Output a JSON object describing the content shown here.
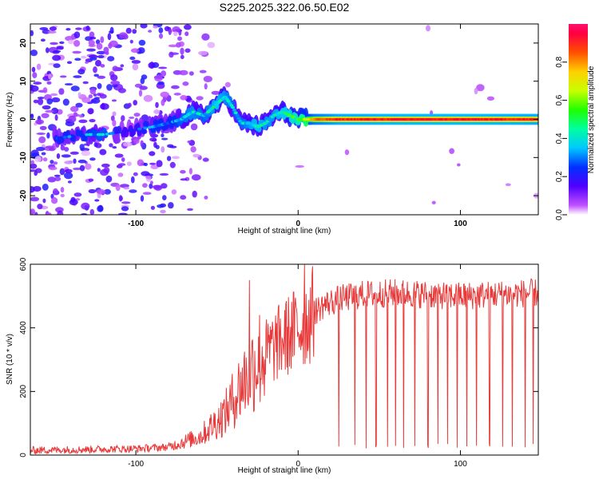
{
  "title": "S225.2025.322.06.50.E02",
  "chart_data": [
    {
      "type": "heatmap",
      "xlabel": "Height of straight line (km)",
      "ylabel": "Frequency (Hz)",
      "xlim": [
        -165,
        148
      ],
      "ylim": [
        -25,
        25
      ],
      "x_ticks": [
        -100,
        0,
        100
      ],
      "y_ticks": [
        -20,
        -10,
        0,
        10,
        20
      ],
      "colorbar": {
        "label": "Normalized spectral amplitude",
        "range": [
          0,
          1
        ],
        "ticks": [
          0.0,
          0.2,
          0.4,
          0.6,
          0.8
        ]
      },
      "ridge": [
        {
          "x": -150,
          "y": -5,
          "a": 0.3
        },
        {
          "x": -130,
          "y": -4,
          "a": 0.35
        },
        {
          "x": -120,
          "y": -4,
          "a": 0.4
        },
        {
          "x": -105,
          "y": -3,
          "a": 0.2
        },
        {
          "x": -90,
          "y": -2,
          "a": 0.35
        },
        {
          "x": -80,
          "y": -1,
          "a": 0.3
        },
        {
          "x": -72,
          "y": 0,
          "a": 0.4
        },
        {
          "x": -65,
          "y": 2,
          "a": 0.45
        },
        {
          "x": -58,
          "y": 1,
          "a": 0.4
        },
        {
          "x": -50,
          "y": 4,
          "a": 0.5
        },
        {
          "x": -45,
          "y": 6,
          "a": 0.45
        },
        {
          "x": -40,
          "y": 3,
          "a": 0.4
        },
        {
          "x": -35,
          "y": -1,
          "a": 0.4
        },
        {
          "x": -30,
          "y": -1,
          "a": 0.45
        },
        {
          "x": -25,
          "y": -2,
          "a": 0.5
        },
        {
          "x": -20,
          "y": -1,
          "a": 0.45
        },
        {
          "x": -15,
          "y": 1,
          "a": 0.45
        },
        {
          "x": -10,
          "y": 2,
          "a": 0.5
        },
        {
          "x": -5,
          "y": 1,
          "a": 0.55
        },
        {
          "x": 0,
          "y": 0,
          "a": 0.6
        },
        {
          "x": 5,
          "y": 0,
          "a": 0.7
        },
        {
          "x": 10,
          "y": 0,
          "a": 0.85
        },
        {
          "x": 25,
          "y": 0,
          "a": 0.95
        },
        {
          "x": 50,
          "y": 0,
          "a": 0.97
        },
        {
          "x": 75,
          "y": 0,
          "a": 0.98
        },
        {
          "x": 100,
          "y": 0,
          "a": 0.98
        },
        {
          "x": 125,
          "y": 0,
          "a": 0.97
        },
        {
          "x": 148,
          "y": 0,
          "a": 0.95
        }
      ]
    },
    {
      "type": "line",
      "xlabel": "Height of straight line (km)",
      "ylabel": "SNR (10 * v/v)",
      "xlim": [
        -165,
        148
      ],
      "ylim": [
        0,
        600
      ],
      "x_ticks": [
        -100,
        0,
        100
      ],
      "y_ticks": [
        0,
        200,
        400,
        600
      ],
      "color": "#e83a3a",
      "envelope": {
        "x": [
          -165,
          -100,
          -80,
          -60,
          -45,
          -35,
          -25,
          -15,
          -5,
          5,
          10,
          15,
          25,
          40,
          60,
          80,
          100,
          120,
          148
        ],
        "y": [
          15,
          20,
          25,
          60,
          130,
          220,
          300,
          340,
          380,
          420,
          450,
          470,
          490,
          505,
          510,
          505,
          500,
          505,
          510
        ]
      },
      "spikes": [
        {
          "x": -30,
          "y": 550
        },
        {
          "x": 4,
          "y": 600
        }
      ],
      "dropouts": [
        25,
        35,
        42,
        48,
        55,
        60,
        65,
        72,
        80,
        86,
        92,
        98,
        104,
        110,
        118,
        126,
        132,
        140,
        145
      ]
    }
  ]
}
